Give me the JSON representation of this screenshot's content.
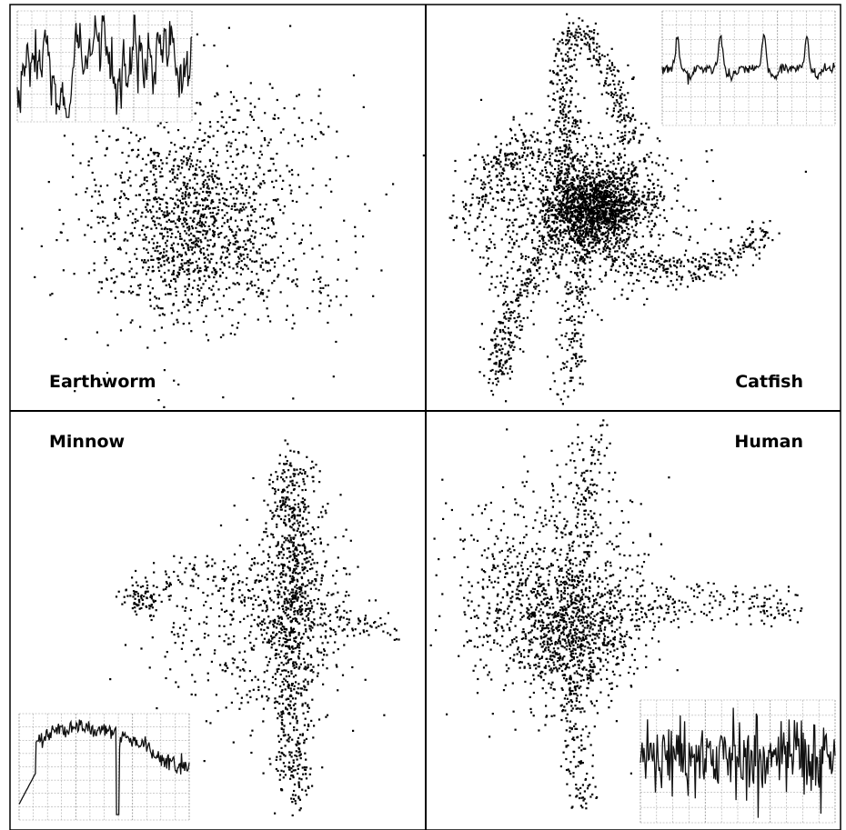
{
  "chart_data": [
    {
      "type": "scatter",
      "label": "Earthworm",
      "label_position": "bottom-left",
      "inset": "top-left",
      "inset_waveform": "irregular",
      "center": [
        0.42,
        0.52
      ],
      "spread": [
        0.26,
        0.26
      ],
      "point_count": 1500
    },
    {
      "type": "scatter",
      "label": "Catfish",
      "label_position": "bottom-right",
      "inset": "top-right",
      "inset_waveform": "regular-peaks",
      "center": [
        0.4,
        0.5
      ],
      "spread": [
        0.3,
        0.4
      ],
      "point_count": 3600
    },
    {
      "type": "scatter",
      "label": "Minnow",
      "label_position": "top-left",
      "inset": "bottom-left",
      "inset_waveform": "slow-wander",
      "center": [
        0.64,
        0.5
      ],
      "spread": [
        0.3,
        0.4
      ],
      "point_count": 1600
    },
    {
      "type": "scatter",
      "label": "Human",
      "label_position": "top-right",
      "inset": "bottom-right",
      "inset_waveform": "noisy-spikes",
      "center": [
        0.34,
        0.5
      ],
      "spread": [
        0.32,
        0.4
      ],
      "point_count": 2000
    }
  ],
  "colors": {
    "points": "#000000",
    "grid": "#9a9a9a",
    "trace": "#111111",
    "frame": "#000000"
  }
}
